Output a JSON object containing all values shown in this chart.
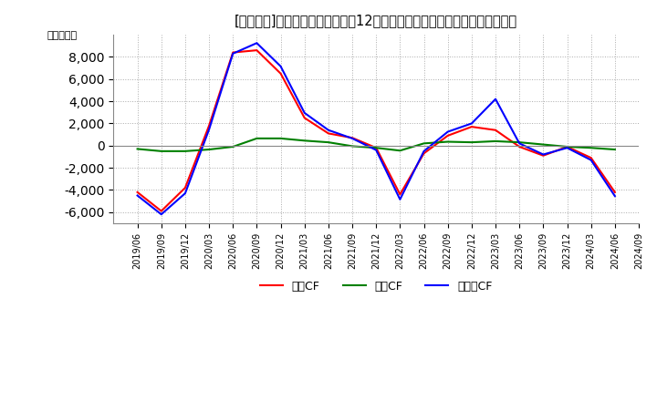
{
  "title": "[１７７５]　キャッシュフローの12か月移動合計の対前年同期増減額の推移",
  "ylabel": "（百万円）",
  "ylim": [
    -7000,
    10000
  ],
  "yticks": [
    -6000,
    -4000,
    -2000,
    0,
    2000,
    4000,
    6000,
    8000
  ],
  "background_color": "#ffffff",
  "grid_color": "#aaaaaa",
  "dates": [
    "2019/06",
    "2019/09",
    "2019/12",
    "2020/03",
    "2020/06",
    "2020/09",
    "2020/12",
    "2021/03",
    "2021/06",
    "2021/09",
    "2021/12",
    "2022/03",
    "2022/06",
    "2022/09",
    "2022/12",
    "2023/03",
    "2023/06",
    "2023/09",
    "2023/12",
    "2024/03",
    "2024/06",
    "2024/09"
  ],
  "operating_cf": [
    -4200,
    -5900,
    -3800,
    1800,
    8400,
    8600,
    6500,
    2500,
    1100,
    700,
    -200,
    -4400,
    -700,
    900,
    1700,
    1400,
    -100,
    -900,
    -100,
    -1100,
    -4200,
    null
  ],
  "investing_cf": [
    -300,
    -500,
    -500,
    -350,
    -100,
    650,
    650,
    450,
    300,
    -50,
    -200,
    -450,
    200,
    350,
    300,
    400,
    300,
    100,
    -100,
    -200,
    -350,
    null
  ],
  "free_cf": [
    -4500,
    -6200,
    -4300,
    1450,
    8300,
    9250,
    7150,
    2950,
    1400,
    650,
    -400,
    -4850,
    -500,
    1250,
    2000,
    4200,
    200,
    -800,
    -200,
    -1300,
    -4550,
    null
  ],
  "operating_color": "#ff0000",
  "investing_color": "#008000",
  "free_color": "#0000ff",
  "line_width": 1.5,
  "legend_labels": [
    "営業CF",
    "投資CF",
    "フリーCF"
  ]
}
